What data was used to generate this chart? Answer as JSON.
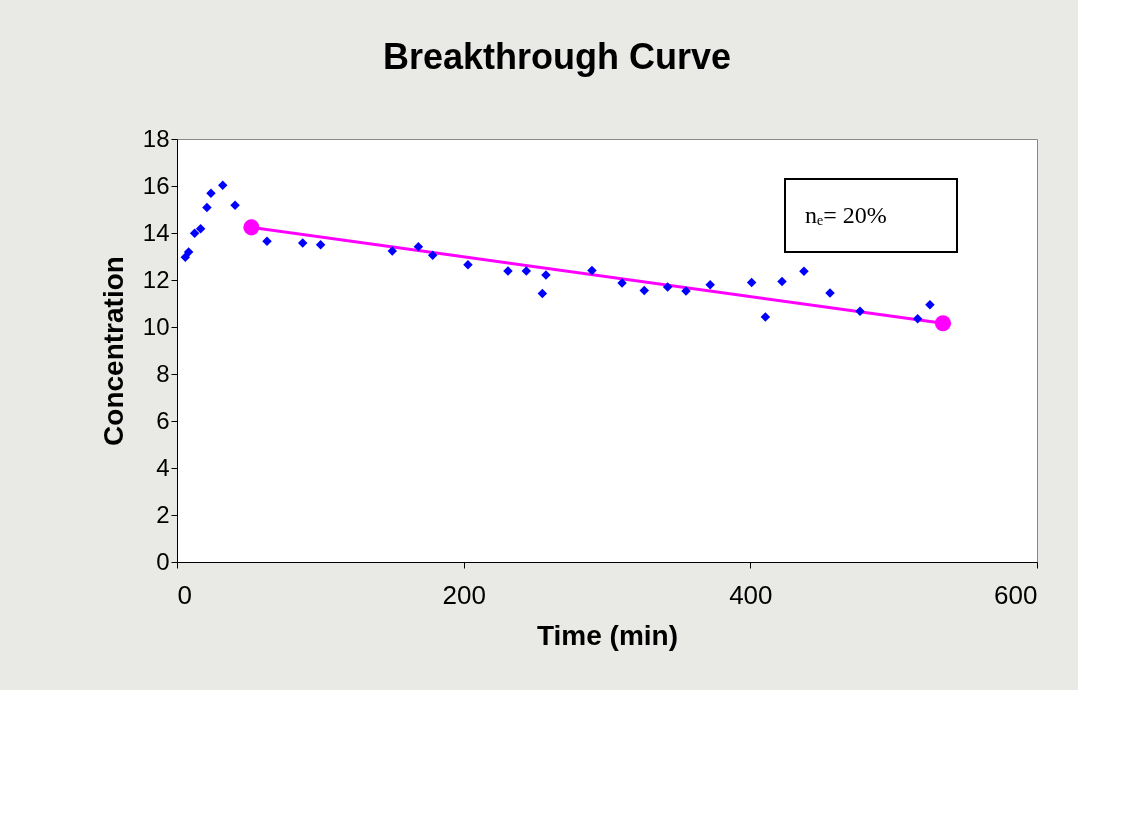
{
  "chart_data": {
    "type": "scatter",
    "title": "Breakthrough Curve",
    "xlabel": "Time (min)",
    "ylabel": "Concentration",
    "xlim": [
      0,
      600
    ],
    "xticks": [
      0,
      200,
      400,
      600
    ],
    "ylim": [
      0,
      18
    ],
    "yticks": [
      0,
      2,
      4,
      6,
      8,
      10,
      12,
      14,
      16,
      18
    ],
    "annotations": [
      "nₑ= 20%"
    ],
    "series": [
      {
        "color": "#0000ff",
        "marker": "diamond",
        "x": [
          5.8,
          8.1,
          12.3,
          16.5,
          20.9,
          23.7,
          31.9,
          40.5,
          62.8,
          87.7,
          100.2,
          150.2,
          168.4,
          178.4,
          203,
          230.9,
          243.7,
          254.9,
          257.4,
          289.5,
          310.5,
          326,
          342.3,
          355.1,
          372,
          400.9,
          410.5,
          422.1,
          437.4,
          455.6,
          476.5,
          516.7,
          525.3
        ],
        "values": [
          12.97,
          13.19,
          13.99,
          14.18,
          15.09,
          15.69,
          16.03,
          15.18,
          13.65,
          13.57,
          13.5,
          13.23,
          13.42,
          13.05,
          12.65,
          12.38,
          12.38,
          11.43,
          12.21,
          12.4,
          11.87,
          11.55,
          11.7,
          11.53,
          11.8,
          11.89,
          10.43,
          11.94,
          12.37,
          11.45,
          10.67,
          10.35,
          10.95
        ]
      },
      {
        "type": "line",
        "color": "#ff00ff",
        "marker": "circle",
        "x": [
          51.9,
          534.4
        ],
        "values": [
          14.24,
          10.16
        ]
      }
    ]
  }
}
